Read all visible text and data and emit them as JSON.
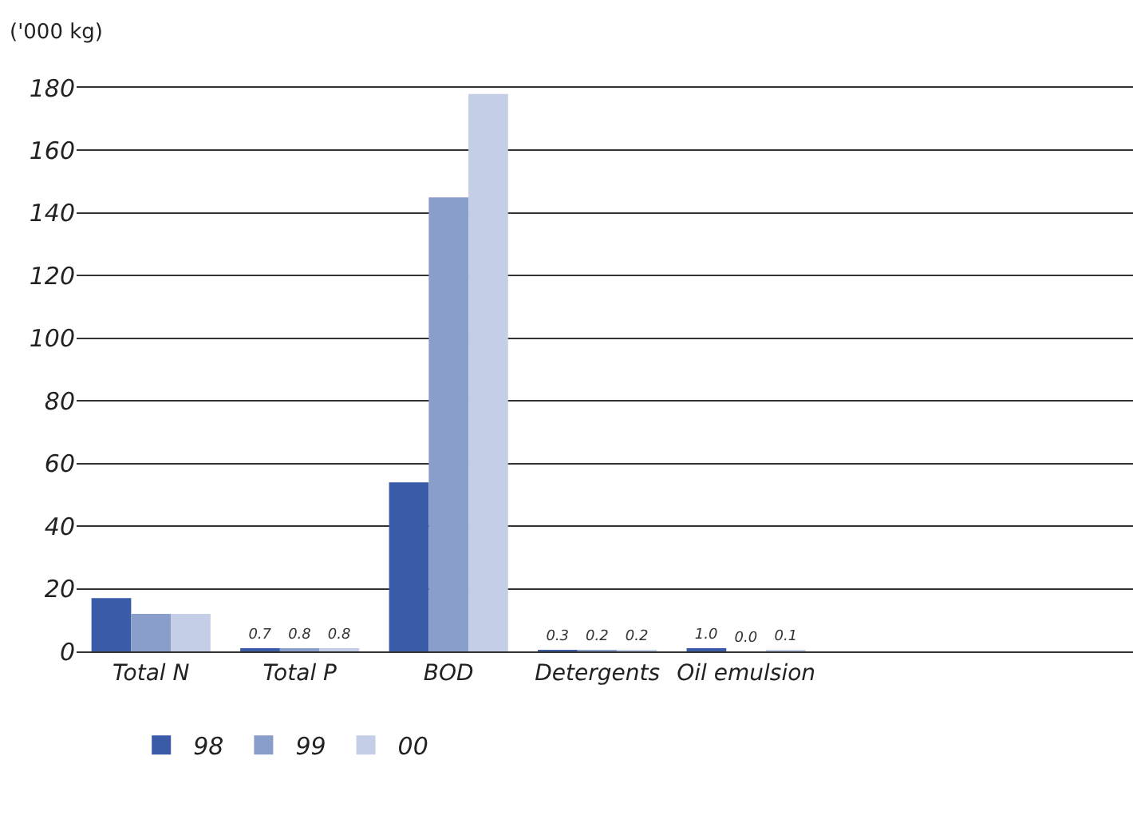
{
  "chart_data": {
    "type": "bar",
    "ylabel": "('000 kg)",
    "categories": [
      "Total N",
      "Total P",
      "BOD",
      "Detergents",
      "Oil emulsion"
    ],
    "series": [
      {
        "name": "98",
        "color": "#3a5ba8",
        "values": [
          17,
          0.7,
          54,
          0.3,
          1.0
        ],
        "value_labels": [
          null,
          "0.7",
          null,
          "0.3",
          "1.0"
        ]
      },
      {
        "name": "99",
        "color": "#8a9ecb",
        "values": [
          12,
          0.8,
          145,
          0.2,
          0.0
        ],
        "value_labels": [
          null,
          "0.8",
          null,
          "0.2",
          "0.0"
        ]
      },
      {
        "name": "00",
        "color": "#c4cfe7",
        "values": [
          12,
          0.8,
          178,
          0.2,
          0.1
        ],
        "value_labels": [
          null,
          "0.8",
          null,
          "0.2",
          "0.1"
        ]
      }
    ],
    "ylim": [
      0,
      180
    ],
    "yticks": [
      0,
      20,
      40,
      60,
      80,
      100,
      120,
      140,
      160,
      180
    ],
    "grid": "y",
    "legend": "bottom left"
  }
}
